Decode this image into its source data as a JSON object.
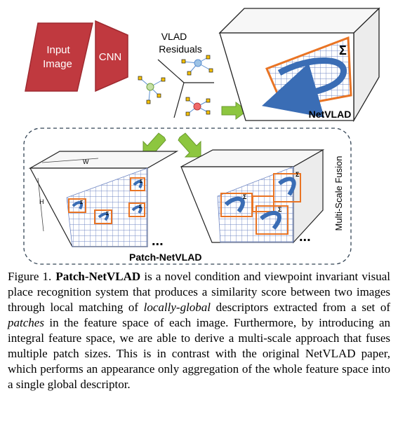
{
  "figure": {
    "input_label_line1": "Input",
    "input_label_line2": "Image",
    "cnn_label": "CNN",
    "vlad_line1": "VLAD",
    "vlad_line2": "Residuals",
    "netvlad_label": "NetVLAD",
    "sigma": "Σ",
    "dim_w": "W",
    "dim_h": "H",
    "patch_netvlad_label": "Patch-NetVLAD",
    "ellipsis": "...",
    "multiscale_label": "Multi-Scale Fusion",
    "colors": {
      "red_block": "#c0393f",
      "orange_grid": "#e97424",
      "blue_grid": "#6f86c3",
      "arrow_blue": "#3a6db5",
      "green_arrow": "#8dc63f"
    }
  },
  "caption": {
    "label": "Figure 1.",
    "title": "Patch-NetVLAD",
    "t1": " is a novel condition and viewpoint invariant visual place recognition system that produces a similarity score between two images through local matching of ",
    "em1": "locally-global",
    "t2": " descriptors extracted from a set of ",
    "em2": "patches",
    "t3": " in the feature space of each image. Furthermore, by introducing an integral feature space, we are able to derive a multi-scale approach that fuses multiple patch sizes. This is in contrast with the original NetVLAD paper, which performs an appearance only aggregation of the whole feature space into a single global descriptor."
  }
}
